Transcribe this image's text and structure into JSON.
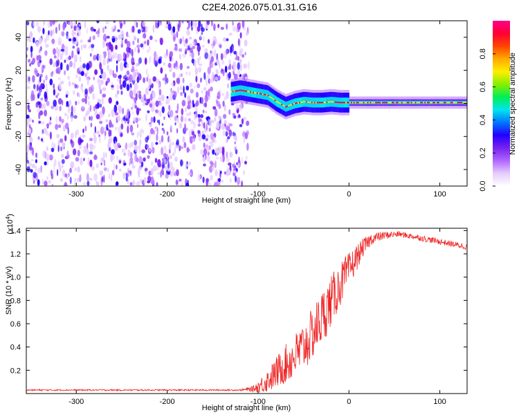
{
  "title": "C2E4.2026.075.01.31.G16",
  "colors": {
    "snr_line": "#ee2222",
    "colormap": [
      "#ffffff",
      "#e6ccff",
      "#b066ff",
      "#7722ee",
      "#2200ff",
      "#0077ff",
      "#00e5ee",
      "#00ee55",
      "#88ee00",
      "#ffee00",
      "#ffaa00",
      "#ff4400",
      "#ff0033",
      "#ff0088"
    ]
  },
  "chart_data": [
    {
      "type": "heatmap",
      "xlabel": "Height of straight line (km)",
      "ylabel": "Frequency (Hz)",
      "xlim": [
        -355,
        130
      ],
      "ylim": [
        -50,
        50
      ],
      "xticks": [
        -300,
        -200,
        -100,
        0,
        100
      ],
      "xtick_labels": [
        "-300",
        "-200",
        "-100",
        "0",
        "100"
      ],
      "yticks": [
        -40,
        -20,
        0,
        20,
        40
      ],
      "ytick_labels": [
        "-40",
        "-20",
        "0",
        "20",
        "40"
      ],
      "noise_region_x": [
        -355,
        -110
      ],
      "signal_trace": {
        "x": [
          -130,
          -120,
          -110,
          -100,
          -90,
          -80,
          -70,
          -60,
          -50,
          -40,
          -30,
          -20,
          -10,
          0,
          20,
          50,
          80,
          100,
          130
        ],
        "y": [
          7,
          8,
          7,
          6,
          5,
          1,
          -2,
          0,
          1,
          0.5,
          0.5,
          1,
          0.5,
          0.5,
          0.5,
          0.5,
          0.5,
          0.5,
          0.5
        ]
      },
      "colorbar": {
        "label": "Normalized spectral amplitude",
        "range": [
          0,
          1
        ],
        "ticks": [
          0.0,
          0.2,
          0.4,
          0.6,
          0.8
        ],
        "tick_labels": [
          "0.0",
          "0.2",
          "0.4",
          "0.6",
          "0.8"
        ]
      }
    },
    {
      "type": "line",
      "xlabel": "Height of straight line (km)",
      "ylabel": "SNR (10 * v/v)",
      "y_multiplier_label": "(x10",
      "y_multiplier_exp": "4",
      "y_multiplier_close": ")",
      "xlim": [
        -355,
        130
      ],
      "ylim": [
        0,
        1.42
      ],
      "xticks": [
        -300,
        -200,
        -100,
        0,
        100
      ],
      "xtick_labels": [
        "-300",
        "-200",
        "-100",
        "0",
        "100"
      ],
      "yticks": [
        0.2,
        0.4,
        0.6,
        0.8,
        1.0,
        1.2,
        1.4
      ],
      "ytick_labels": [
        "0.2",
        "0.4",
        "0.6",
        "0.8",
        "1.0",
        "1.2",
        "1.4"
      ],
      "series": [
        {
          "name": "SNR",
          "x": [
            -355,
            -300,
            -200,
            -120,
            -105,
            -95,
            -85,
            -75,
            -65,
            -55,
            -45,
            -35,
            -25,
            -15,
            -5,
            5,
            15,
            25,
            40,
            55,
            70,
            90,
            110,
            130
          ],
          "y": [
            0.03,
            0.03,
            0.03,
            0.03,
            0.04,
            0.08,
            0.14,
            0.22,
            0.28,
            0.36,
            0.45,
            0.58,
            0.72,
            0.86,
            1.0,
            1.12,
            1.25,
            1.33,
            1.36,
            1.37,
            1.35,
            1.32,
            1.29,
            1.26
          ],
          "noise": [
            0.005,
            0.005,
            0.005,
            0.005,
            0.02,
            0.06,
            0.09,
            0.12,
            0.14,
            0.16,
            0.17,
            0.18,
            0.18,
            0.16,
            0.13,
            0.1,
            0.06,
            0.04,
            0.025,
            0.02,
            0.02,
            0.02,
            0.02,
            0.02
          ]
        }
      ]
    }
  ]
}
